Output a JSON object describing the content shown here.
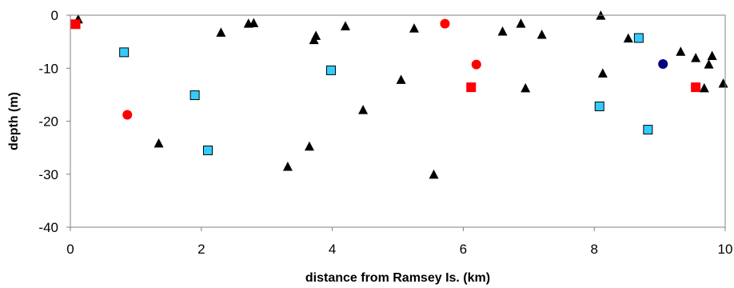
{
  "chart_data": {
    "type": "scatter",
    "title": "",
    "xlabel": "distance from Ramsey Is. (km)",
    "ylabel": "depth (m)",
    "xlim": [
      0,
      10
    ],
    "ylim": [
      -40,
      0
    ],
    "xticks": [
      0,
      2,
      4,
      6,
      8,
      10
    ],
    "yticks": [
      0,
      -10,
      -20,
      -30,
      -40
    ],
    "grid": false,
    "legend": "none",
    "series": [
      {
        "marker": "triangle",
        "color": "#000000",
        "points": [
          [
            0.12,
            -0.8
          ],
          [
            1.35,
            -24.2
          ],
          [
            2.3,
            -3.3
          ],
          [
            2.72,
            -1.6
          ],
          [
            2.8,
            -1.5
          ],
          [
            3.32,
            -28.6
          ],
          [
            3.65,
            -24.8
          ],
          [
            3.72,
            -4.7
          ],
          [
            3.75,
            -3.9
          ],
          [
            4.2,
            -2.1
          ],
          [
            4.47,
            -17.9
          ],
          [
            5.05,
            -12.2
          ],
          [
            5.25,
            -2.5
          ],
          [
            5.55,
            -30.1
          ],
          [
            6.6,
            -3.1
          ],
          [
            6.88,
            -1.6
          ],
          [
            6.95,
            -13.8
          ],
          [
            7.2,
            -3.7
          ],
          [
            8.1,
            -0.1
          ],
          [
            8.13,
            -11.0
          ],
          [
            8.52,
            -4.4
          ],
          [
            9.32,
            -6.9
          ],
          [
            9.55,
            -8.1
          ],
          [
            9.68,
            -13.8
          ],
          [
            9.75,
            -9.3
          ],
          [
            9.8,
            -7.7
          ],
          [
            9.97,
            -12.9
          ]
        ]
      },
      {
        "marker": "square",
        "color": "#ff0000",
        "points": [
          [
            0.08,
            -1.7
          ],
          [
            6.12,
            -13.6
          ],
          [
            9.55,
            -13.6
          ]
        ]
      },
      {
        "marker": "circle",
        "color": "#ff0000",
        "points": [
          [
            0.87,
            -18.8
          ],
          [
            5.72,
            -1.6
          ],
          [
            6.2,
            -9.3
          ]
        ]
      },
      {
        "marker": "square-outline",
        "color": "#33ccff",
        "points": [
          [
            0.82,
            -7.0
          ],
          [
            1.9,
            -15.1
          ],
          [
            2.1,
            -25.5
          ],
          [
            3.98,
            -10.4
          ],
          [
            8.08,
            -17.2
          ],
          [
            8.68,
            -4.3
          ],
          [
            8.82,
            -21.6
          ]
        ]
      },
      {
        "marker": "circle",
        "color": "#000080",
        "points": [
          [
            9.05,
            -9.2
          ]
        ]
      }
    ]
  }
}
